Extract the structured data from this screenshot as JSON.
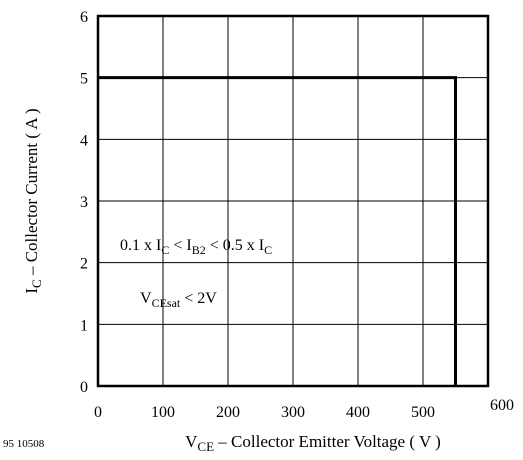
{
  "chart_data": {
    "type": "line",
    "xlabel": "V_CE – Collector Emitter Voltage ( V )",
    "xlabel_parts": {
      "main": "V",
      "sub": "CE",
      "rest": " – Collector Emitter Voltage ( V )"
    },
    "ylabel": "I_C – Collector Current ( A )",
    "ylabel_parts": {
      "main": "I",
      "sub": "C",
      "rest": " – Collector Current ( A )"
    },
    "xlim": [
      0,
      600
    ],
    "ylim": [
      0,
      6
    ],
    "x_ticks": [
      0,
      100,
      200,
      300,
      400,
      500,
      600
    ],
    "y_ticks": [
      0,
      1,
      2,
      3,
      4,
      5,
      6
    ],
    "grid": true,
    "series": [
      {
        "x": [
          0,
          550,
          550
        ],
        "y": [
          5,
          5,
          0
        ]
      }
    ],
    "annotations": {
      "condition1": "0.1 x I_C < I_B2 < 0.5 x I_C",
      "condition2": "V_CEsat < 2V"
    }
  },
  "figure_id": "95 10508"
}
